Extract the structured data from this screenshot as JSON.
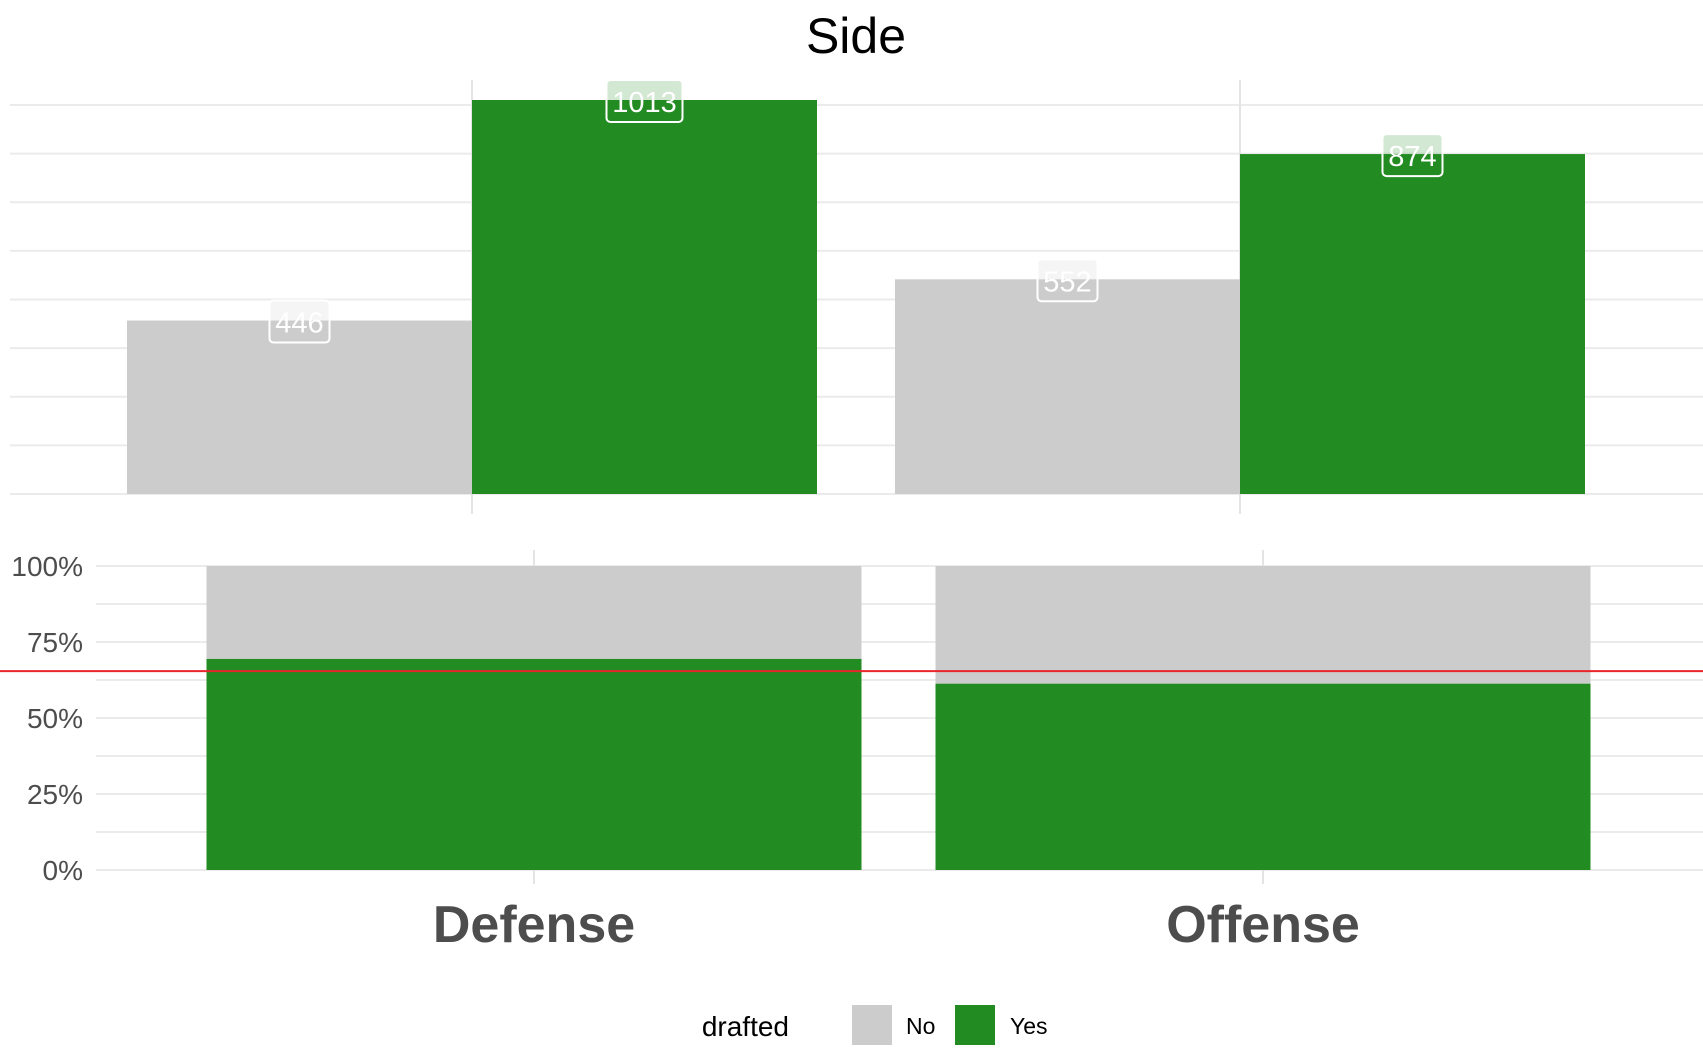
{
  "chart_data": [
    {
      "type": "bar",
      "panel": "counts",
      "title": "Side",
      "categories": [
        "Defense",
        "Offense"
      ],
      "series": [
        {
          "name": "No",
          "values": [
            446,
            552
          ]
        },
        {
          "name": "Yes",
          "values": [
            1013,
            874
          ]
        }
      ],
      "ylim": [
        0,
        1070
      ],
      "y_axis_labels_shown": false,
      "grid": true
    },
    {
      "type": "bar",
      "panel": "proportions",
      "stacked": true,
      "categories": [
        "Defense",
        "Offense"
      ],
      "series": [
        {
          "name": "No",
          "values": [
            0.3057,
            0.3871
          ]
        },
        {
          "name": "Yes",
          "values": [
            0.6943,
            0.6129
          ]
        }
      ],
      "ylim": [
        0,
        1
      ],
      "y_ticks": [
        "0%",
        "25%",
        "50%",
        "75%",
        "100%"
      ],
      "reference_line": 0.654,
      "grid": true
    }
  ],
  "legend": {
    "title": "drafted",
    "items": [
      {
        "label": "No",
        "color": "#cccccc"
      },
      {
        "label": "Yes",
        "color": "#228b22"
      }
    ],
    "position": "bottom"
  },
  "colors": {
    "No": "#cccccc",
    "Yes": "#228b22",
    "reference_line": "#e8262b"
  }
}
